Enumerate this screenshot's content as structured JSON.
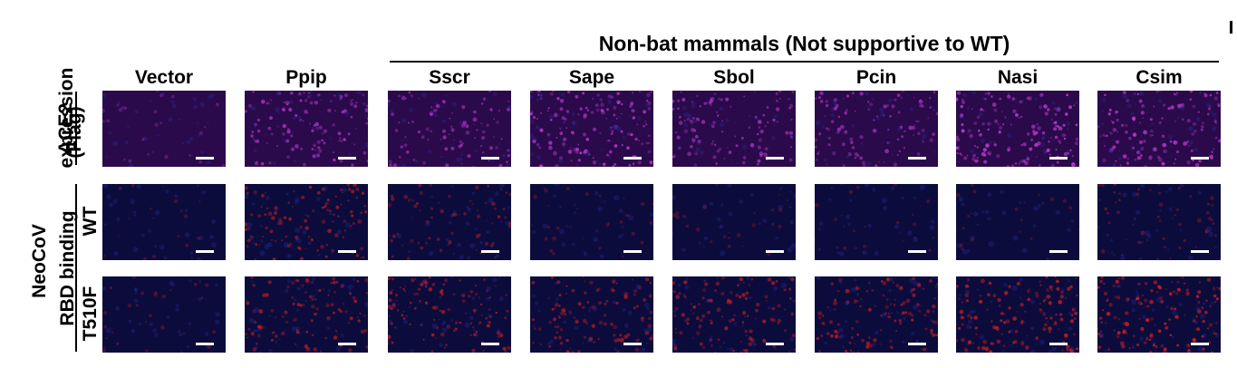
{
  "group_header": "Non-bat mammals (Not supportive to WT)",
  "columns": [
    "Vector",
    "Ppip",
    "Sscr",
    "Sape",
    "Sbol",
    "Pcin",
    "Nasi",
    "Csim"
  ],
  "row_labels": {
    "ace2_line1": "ACE2",
    "ace2_line2": "expression",
    "ace2_line3": "(Flag)",
    "neocov_line1": "NeoCoV",
    "neocov_line2": "RBD binding",
    "wt": "WT",
    "t510f": "T510F"
  },
  "rows": [
    {
      "key": "ace2",
      "stain": "magenta",
      "intensity": [
        0.05,
        0.6,
        0.45,
        0.75,
        0.55,
        0.5,
        0.8,
        0.7
      ]
    },
    {
      "key": "wt",
      "stain": "red",
      "intensity": [
        0.0,
        0.55,
        0.3,
        0.05,
        0.02,
        0.02,
        0.0,
        0.2
      ]
    },
    {
      "key": "t510f",
      "stain": "red",
      "intensity": [
        0.05,
        0.55,
        0.6,
        0.55,
        0.6,
        0.6,
        0.7,
        0.75
      ]
    }
  ],
  "colors": {
    "background_blue": "#10104a",
    "magenta": "#d040e0",
    "red": "#e02020",
    "scalebar": "#ffffff"
  }
}
